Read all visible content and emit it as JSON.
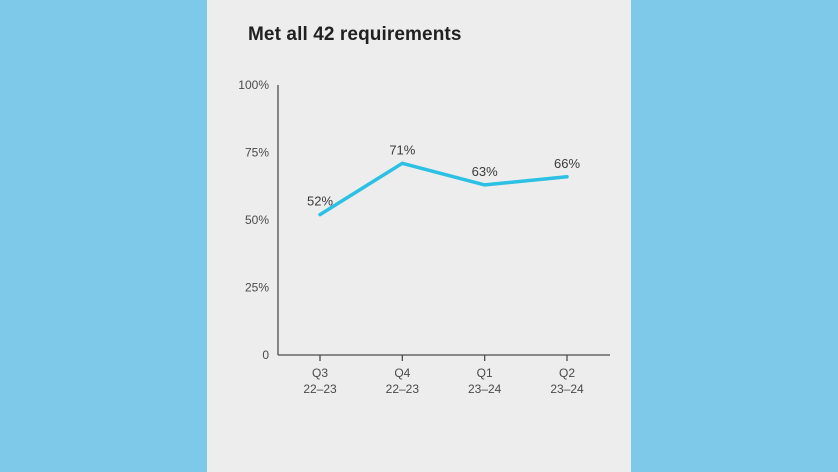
{
  "colors": {
    "background": "#7ec9ea",
    "panel": "#ededed",
    "line": "#2bc0e4",
    "axis": "#4d4d4d",
    "text": "#3a3a3a",
    "title": "#212121"
  },
  "chart": {
    "title": "Met all 42 requirements"
  },
  "chart_data": {
    "type": "line",
    "title": "Met all 42 requirements",
    "categories": [
      {
        "quarter": "Q3",
        "year": "22–23"
      },
      {
        "quarter": "Q4",
        "year": "22–23"
      },
      {
        "quarter": "Q1",
        "year": "23–24"
      },
      {
        "quarter": "Q2",
        "year": "23–24"
      }
    ],
    "values": [
      52,
      71,
      63,
      66
    ],
    "point_labels": [
      "52%",
      "71%",
      "63%",
      "66%"
    ],
    "xlabel": "",
    "ylabel": "",
    "ylim": [
      0,
      100
    ],
    "yticks": [
      0,
      25,
      50,
      75,
      100
    ],
    "ytick_labels": [
      "0",
      "25%",
      "50%",
      "75%",
      "100%"
    ],
    "grid": false,
    "legend": false
  }
}
